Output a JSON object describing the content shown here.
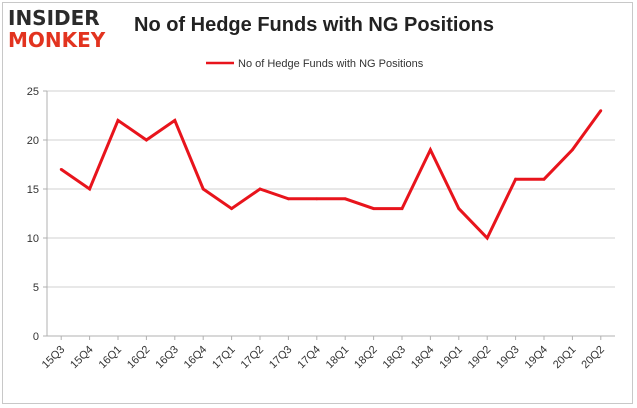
{
  "logo": {
    "top": "INSIDER",
    "bottom": "MONKEY"
  },
  "chart_data": {
    "type": "line",
    "title": "No of Hedge Funds with NG Positions",
    "categories": [
      "15Q3",
      "15Q4",
      "16Q1",
      "16Q2",
      "16Q3",
      "16Q4",
      "17Q1",
      "17Q2",
      "17Q3",
      "17Q4",
      "18Q1",
      "18Q2",
      "18Q3",
      "18Q4",
      "19Q1",
      "19Q2",
      "19Q3",
      "19Q4",
      "20Q1",
      "20Q2"
    ],
    "series": [
      {
        "name": "No of Hedge Funds with NG Positions",
        "color": "#e8141c",
        "values": [
          17,
          15,
          22,
          20,
          22,
          15,
          13,
          15,
          14,
          14,
          14,
          13,
          13,
          19,
          13,
          10,
          16,
          16,
          19,
          23
        ]
      }
    ],
    "ylim": [
      0,
      25
    ],
    "yticks": [
      0,
      5,
      10,
      15,
      20,
      25
    ],
    "grid": true,
    "legend": "top-center",
    "xlabel": "",
    "ylabel": ""
  }
}
